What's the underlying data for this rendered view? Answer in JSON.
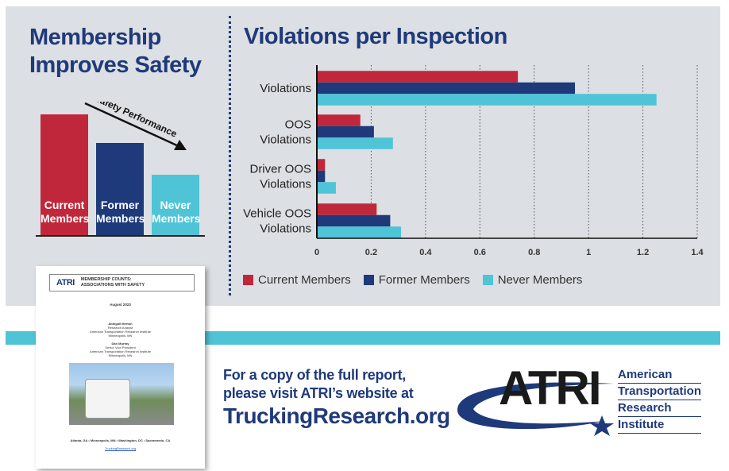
{
  "left_panel": {
    "title_line1": "Membership",
    "title_line2": "Improves Safety",
    "arrow_label": "Safety Performance",
    "bars": [
      {
        "label_line1": "Current",
        "label_line2": "Members",
        "color": "#c0273a",
        "relative_height": 1.0
      },
      {
        "label_line1": "Former",
        "label_line2": "Members",
        "color": "#1f3a7a",
        "relative_height": 0.76
      },
      {
        "label_line1": "Never",
        "label_line2": "Members",
        "color": "#4fc4d6",
        "relative_height": 0.5
      }
    ]
  },
  "chart_title": "Violations per Inspection",
  "chart_data": {
    "type": "bar",
    "orientation": "horizontal",
    "title": "Violations per Inspection",
    "categories": [
      [
        "Violations"
      ],
      [
        "OOS",
        "Violations"
      ],
      [
        "Driver OOS",
        "Violations"
      ],
      [
        "Vehicle OOS",
        "Violations"
      ]
    ],
    "series": [
      {
        "name": "Current Members",
        "color": "#c0273a",
        "values": [
          0.74,
          0.16,
          0.03,
          0.22
        ]
      },
      {
        "name": "Former Members",
        "color": "#1f3a7a",
        "values": [
          0.95,
          0.21,
          0.03,
          0.27
        ]
      },
      {
        "name": "Never Members",
        "color": "#4fc4d6",
        "values": [
          1.25,
          0.28,
          0.07,
          0.31
        ]
      }
    ],
    "xlim": [
      0,
      1.4
    ],
    "xticks": [
      "0",
      "0.2",
      "0.4",
      "0.6",
      "0.8",
      "1",
      "1.2",
      "1.4"
    ],
    "xtick_values": [
      0,
      0.2,
      0.4,
      0.6,
      0.8,
      1.0,
      1.2,
      1.4
    ],
    "grid": "vertical dotted",
    "legend_position": "bottom"
  },
  "report": {
    "logo": "ATRI",
    "title": "MEMBERSHIP COUNTS:\nASSOCIATIONS WITH SAFETY",
    "date": "August 2023",
    "author1_name": "Abhigail Merton",
    "author1_role": "Research Analyst",
    "author1_org": "American Transportation Research Institute",
    "author1_city": "Minneapolis, MN",
    "author2_name": "Dan Murray",
    "author2_role": "Senior Vice President",
    "author2_org": "American Transportation Research Institute",
    "author2_city": "Minneapolis, MN",
    "cities": "Atlanta, GA • Minneapolis, MN • Washington, DC • Sacramento, CA",
    "link": "TruckingResearch.org"
  },
  "cta": {
    "line1": "For a copy of the full report,",
    "line2": "please visit ATRI’s website at",
    "url": "TruckingResearch.org"
  },
  "atri": {
    "word": "ATRI",
    "name_line1": "American",
    "name_line2": "Transportation",
    "name_line3": "Research",
    "name_line4": "Institute"
  }
}
